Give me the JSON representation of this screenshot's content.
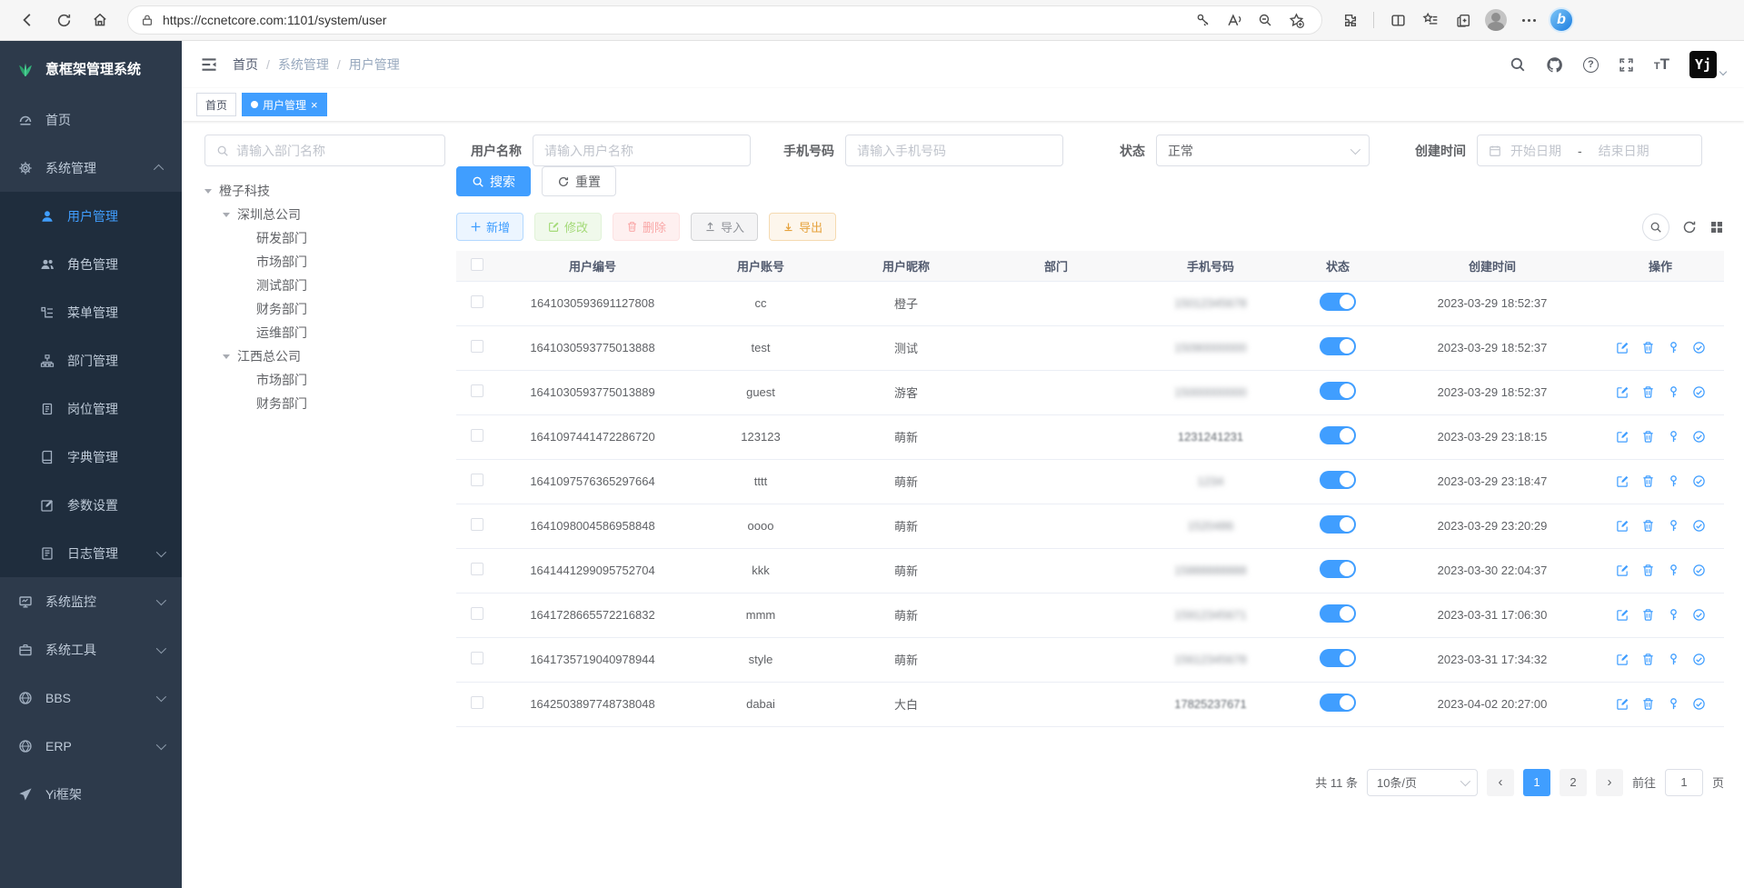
{
  "browser": {
    "url": "https://ccnetcore.com:1101/system/user"
  },
  "sidebar": {
    "title": "意框架管理系统",
    "items": [
      {
        "key": "home",
        "label": "首页",
        "icon": "dashboard",
        "type": "top"
      },
      {
        "key": "system-management",
        "label": "系统管理",
        "icon": "gear",
        "type": "top",
        "caret": "up"
      },
      {
        "key": "user-management",
        "label": "用户管理",
        "icon": "user",
        "type": "sub",
        "active": true
      },
      {
        "key": "role-management",
        "label": "角色管理",
        "icon": "users",
        "type": "sub"
      },
      {
        "key": "menu-management",
        "label": "菜单管理",
        "icon": "menu",
        "type": "sub"
      },
      {
        "key": "dept-management",
        "label": "部门管理",
        "icon": "dept",
        "type": "sub"
      },
      {
        "key": "post-management",
        "label": "岗位管理",
        "icon": "post",
        "type": "sub"
      },
      {
        "key": "dict-management",
        "label": "字典管理",
        "icon": "dict",
        "type": "sub"
      },
      {
        "key": "param-settings",
        "label": "参数设置",
        "icon": "param",
        "type": "sub"
      },
      {
        "key": "log-management",
        "label": "日志管理",
        "icon": "log",
        "type": "sub",
        "caret": "down"
      },
      {
        "key": "system-monitor",
        "label": "系统监控",
        "icon": "monitor",
        "type": "top",
        "caret": "down"
      },
      {
        "key": "system-tools",
        "label": "系统工具",
        "icon": "tool",
        "type": "top",
        "caret": "down"
      },
      {
        "key": "bbs",
        "label": "BBS",
        "icon": "globe",
        "type": "top",
        "caret": "down"
      },
      {
        "key": "erp",
        "label": "ERP",
        "icon": "globe",
        "type": "top",
        "caret": "down"
      },
      {
        "key": "yi-framework",
        "label": "Yi框架",
        "icon": "plane",
        "type": "top"
      }
    ]
  },
  "navbar": {
    "breadcrumb": [
      "首页",
      "系统管理",
      "用户管理"
    ],
    "separator": "/",
    "avatar_text": "Yj"
  },
  "tags": {
    "items": [
      {
        "label": "首页"
      },
      {
        "label": "用户管理"
      }
    ],
    "close_glyph": "×"
  },
  "filters": {
    "dept_placeholder": "请输入部门名称",
    "username_label": "用户名称",
    "username_placeholder": "请输入用户名称",
    "phone_label": "手机号码",
    "phone_placeholder": "请输入手机号码",
    "status_label": "状态",
    "status_value": "正常",
    "created_label": "创建时间",
    "date_start": "开始日期",
    "date_sep": "-",
    "date_end": "结束日期"
  },
  "tree": {
    "nodes": [
      {
        "label": "橙子科技",
        "level": 0,
        "caret": true
      },
      {
        "label": "深圳总公司",
        "level": 1,
        "caret": true
      },
      {
        "label": "研发部门",
        "level": 2
      },
      {
        "label": "市场部门",
        "level": 2
      },
      {
        "label": "测试部门",
        "level": 2
      },
      {
        "label": "财务部门",
        "level": 2
      },
      {
        "label": "运维部门",
        "level": 2
      },
      {
        "label": "江西总公司",
        "level": 1,
        "caret": true
      },
      {
        "label": "市场部门",
        "level": 2
      },
      {
        "label": "财务部门",
        "level": 2
      }
    ]
  },
  "actions": {
    "search": "搜索",
    "reset": "重置",
    "add": "新增",
    "modify": "修改",
    "delete": "删除",
    "import": "导入",
    "export": "导出"
  },
  "table": {
    "headers": [
      "用户编号",
      "用户账号",
      "用户昵称",
      "部门",
      "手机号码",
      "状态",
      "创建时间",
      "操作"
    ],
    "rows": [
      {
        "id": "1641030593691127808",
        "account": "cc",
        "nickname": "橙子",
        "dept": "",
        "phone": "15012345678",
        "phone_blur": "heavy",
        "status_on": true,
        "created": "2023-03-29 18:52:37",
        "has_actions": false
      },
      {
        "id": "1641030593775013888",
        "account": "test",
        "nickname": "测试",
        "dept": "",
        "phone": "15090000000",
        "phone_blur": "heavy",
        "status_on": true,
        "created": "2023-03-29 18:52:37",
        "has_actions": true
      },
      {
        "id": "1641030593775013889",
        "account": "guest",
        "nickname": "游客",
        "dept": "",
        "phone": "15000000000",
        "phone_blur": "heavy",
        "status_on": true,
        "created": "2023-03-29 18:52:37",
        "has_actions": true
      },
      {
        "id": "1641097441472286720",
        "account": "123123",
        "nickname": "萌新",
        "dept": "",
        "phone": "1231241231",
        "phone_blur": "light",
        "status_on": true,
        "created": "2023-03-29 23:18:15",
        "has_actions": true
      },
      {
        "id": "1641097576365297664",
        "account": "tttt",
        "nickname": "萌新",
        "dept": "",
        "phone": "1234",
        "phone_blur": "heavy",
        "status_on": true,
        "created": "2023-03-29 23:18:47",
        "has_actions": true
      },
      {
        "id": "1641098004586958848",
        "account": "oooo",
        "nickname": "萌新",
        "dept": "",
        "phone": "1520486",
        "phone_blur": "heavy",
        "status_on": true,
        "created": "2023-03-29 23:20:29",
        "has_actions": true
      },
      {
        "id": "1641441299095752704",
        "account": "kkk",
        "nickname": "萌新",
        "dept": "",
        "phone": "15888888888",
        "phone_blur": "heavy",
        "status_on": true,
        "created": "2023-03-30 22:04:37",
        "has_actions": true
      },
      {
        "id": "1641728665572216832",
        "account": "mmm",
        "nickname": "萌新",
        "dept": "",
        "phone": "15912345671",
        "phone_blur": "heavy",
        "status_on": true,
        "created": "2023-03-31 17:06:30",
        "has_actions": true
      },
      {
        "id": "1641735719040978944",
        "account": "style",
        "nickname": "萌新",
        "dept": "",
        "phone": "15612345678",
        "phone_blur": "heavy",
        "status_on": true,
        "created": "2023-03-31 17:34:32",
        "has_actions": true
      },
      {
        "id": "1642503897748738048",
        "account": "dabai",
        "nickname": "大白",
        "dept": "",
        "phone": "17825237671",
        "phone_blur": "light",
        "status_on": true,
        "created": "2023-04-02 20:27:00",
        "has_actions": true
      }
    ]
  },
  "pagination": {
    "total": "共 11 条",
    "page_size": "10条/页",
    "pages": [
      "1",
      "2"
    ],
    "current": "1",
    "prev_glyph": "‹",
    "next_glyph": "›",
    "goto_label": "前往",
    "goto_value": "1",
    "goto_suffix": "页"
  }
}
